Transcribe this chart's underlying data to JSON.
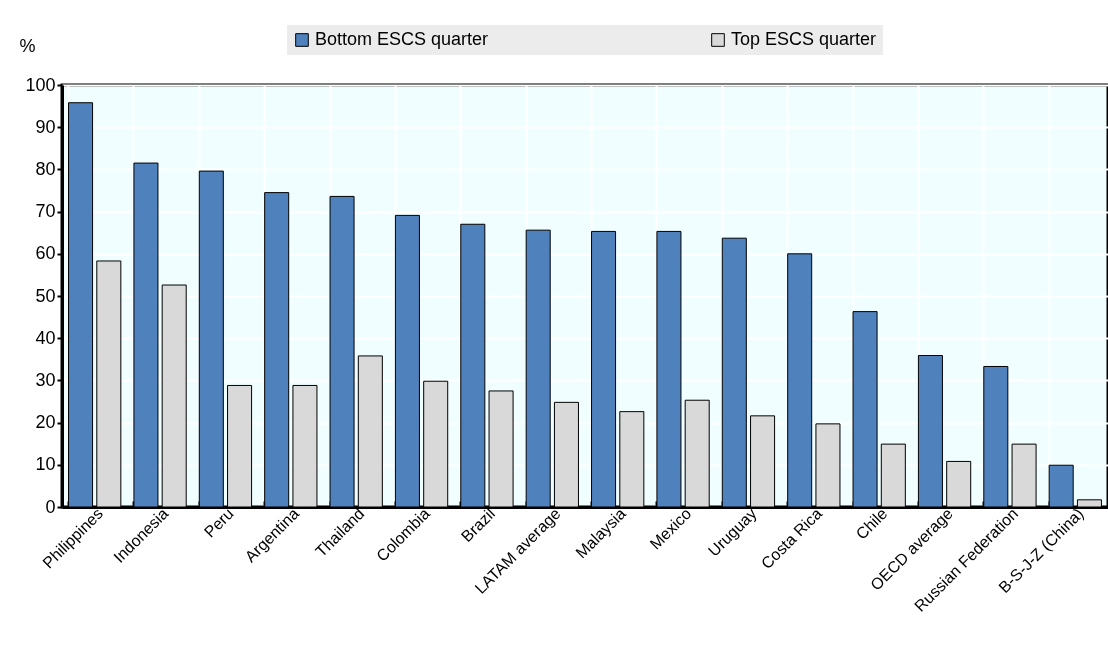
{
  "chart_data": {
    "type": "bar",
    "ylabel": "%",
    "categories": [
      "Philippines",
      "Indonesia",
      "Peru",
      "Argentina",
      "Thailand",
      "Colombia",
      "Brazil",
      "LATAM average",
      "Malaysia",
      "Mexico",
      "Uruguay",
      "Costa Rica",
      "Chile",
      "OECD average",
      "Russian Federation",
      "B-S-J-Z (China)"
    ],
    "series": [
      {
        "name": "Bottom ESCS quarter",
        "color": "#4f81bd",
        "values": [
          95.8,
          81.5,
          79.6,
          74.5,
          73.6,
          69.1,
          67.0,
          65.6,
          65.3,
          65.3,
          63.7,
          60.0,
          46.3,
          35.9,
          33.3,
          9.9
        ]
      },
      {
        "name": "Top ESCS quarter",
        "color": "#d9d9d9",
        "values": [
          58.3,
          52.6,
          28.8,
          28.8,
          35.8,
          29.8,
          27.5,
          24.8,
          22.6,
          25.3,
          21.6,
          19.7,
          14.9,
          10.8,
          14.9,
          1.7
        ]
      }
    ],
    "ylim": [
      0,
      100
    ],
    "yticks": [
      0,
      10,
      20,
      30,
      40,
      50,
      60,
      70,
      80,
      90,
      100
    ],
    "grid": true,
    "legend": "top"
  }
}
